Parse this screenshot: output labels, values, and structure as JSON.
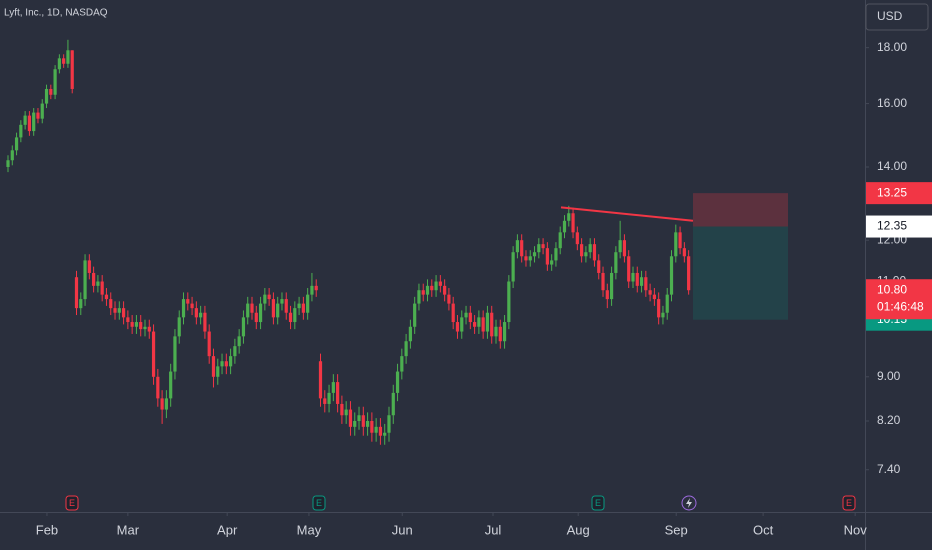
{
  "chart_data": {
    "type": "candlestick",
    "title": "Lyft, Inc., 1D, NASDAQ",
    "currency": "USD",
    "log_scale": true,
    "up_color": "#4caf50",
    "down_color": "#f23645",
    "open": [
      14.0,
      14.2,
      14.5,
      14.9,
      15.3,
      15.6,
      15.1,
      15.7,
      15.5,
      16.0,
      16.5,
      16.3,
      17.2,
      17.6,
      17.4,
      17.9,
      11.1,
      10.4,
      10.6,
      11.5,
      11.2,
      10.9,
      11.0,
      10.7,
      10.6,
      10.4,
      10.3,
      10.4,
      10.2,
      10.1,
      10.0,
      10.1,
      9.95,
      10.0,
      9.9,
      9.0,
      8.6,
      8.4,
      8.6,
      9.1,
      9.8,
      10.2,
      10.6,
      10.5,
      10.4,
      10.2,
      10.3,
      9.9,
      9.4,
      9.0,
      9.2,
      9.3,
      9.2,
      9.4,
      9.6,
      9.8,
      10.2,
      10.5,
      10.3,
      10.1,
      10.5,
      10.7,
      10.6,
      10.2,
      10.5,
      10.6,
      10.3,
      10.1,
      10.4,
      10.5,
      10.3,
      10.7,
      10.9,
      9.3,
      8.6,
      8.5,
      8.7,
      8.9,
      8.5,
      8.3,
      8.4,
      8.1,
      8.2,
      8.3,
      8.1,
      8.2,
      8.0,
      8.1,
      7.95,
      8.0,
      8.3,
      8.7,
      9.1,
      9.4,
      9.7,
      10.0,
      10.5,
      10.8,
      10.7,
      10.9,
      10.8,
      11.0,
      10.9,
      10.7,
      10.5,
      10.1,
      9.9,
      10.2,
      10.3,
      10.1,
      10.0,
      10.2,
      9.9,
      10.3,
      9.8,
      10.0,
      9.7,
      10.1,
      11.0,
      11.7,
      12.0,
      11.6,
      11.5,
      11.6,
      11.7,
      11.9,
      11.8,
      11.4,
      11.5,
      11.8,
      12.2,
      12.5,
      12.7,
      12.2,
      11.9,
      11.6,
      11.7,
      11.9,
      11.5,
      11.2,
      10.8,
      10.6,
      11.2,
      11.7,
      12.0,
      11.6,
      11.0,
      11.2,
      10.9,
      11.1,
      10.8,
      10.7,
      10.6,
      10.2,
      10.3,
      10.7,
      11.6,
      12.2,
      11.8,
      11.6
    ],
    "high": [
      14.35,
      14.65,
      15.05,
      15.45,
      15.75,
      15.75,
      15.85,
      15.85,
      16.15,
      16.65,
      16.65,
      17.35,
      17.75,
      17.75,
      18.3,
      17.9,
      11.25,
      10.75,
      11.65,
      11.65,
      11.35,
      11.15,
      11.15,
      10.85,
      10.75,
      10.55,
      10.55,
      10.55,
      10.35,
      10.25,
      10.25,
      10.25,
      10.15,
      10.15,
      10.05,
      9.15,
      8.75,
      8.75,
      9.25,
      9.95,
      10.35,
      10.75,
      10.75,
      10.65,
      10.55,
      10.45,
      10.45,
      10.05,
      9.55,
      9.35,
      9.45,
      9.45,
      9.55,
      9.75,
      9.95,
      10.35,
      10.65,
      10.65,
      10.45,
      10.65,
      10.85,
      10.85,
      10.75,
      10.65,
      10.75,
      10.75,
      10.45,
      10.55,
      10.65,
      10.65,
      10.85,
      11.2,
      11.05,
      9.45,
      8.75,
      8.85,
      9.05,
      9.05,
      8.65,
      8.55,
      8.55,
      8.35,
      8.45,
      8.45,
      8.35,
      8.35,
      8.25,
      8.25,
      8.15,
      8.45,
      8.85,
      9.25,
      9.55,
      9.85,
      10.15,
      10.65,
      10.95,
      10.95,
      11.05,
      11.05,
      11.15,
      11.15,
      11.05,
      10.85,
      10.65,
      10.25,
      10.35,
      10.45,
      10.45,
      10.25,
      10.35,
      10.35,
      10.45,
      10.45,
      10.15,
      10.15,
      10.25,
      11.15,
      11.85,
      12.15,
      12.15,
      11.75,
      11.75,
      11.85,
      12.05,
      12.05,
      11.95,
      11.65,
      11.95,
      12.35,
      12.65,
      12.9,
      12.85,
      12.35,
      12.05,
      11.85,
      12.05,
      12.05,
      11.65,
      11.35,
      10.95,
      11.35,
      11.85,
      12.5,
      12.15,
      11.75,
      11.35,
      11.35,
      11.25,
      11.25,
      10.95,
      10.85,
      10.75,
      10.45,
      10.85,
      11.75,
      12.4,
      12.35,
      11.95,
      11.75
    ],
    "low": [
      13.85,
      14.05,
      14.35,
      14.75,
      15.15,
      14.95,
      14.95,
      15.35,
      15.35,
      15.85,
      16.15,
      16.15,
      17.05,
      17.25,
      17.25,
      16.35,
      10.25,
      10.25,
      10.45,
      11.05,
      10.75,
      10.75,
      10.55,
      10.45,
      10.25,
      10.15,
      10.15,
      10.05,
      9.95,
      9.85,
      9.85,
      9.8,
      9.8,
      9.75,
      8.85,
      8.45,
      8.15,
      8.25,
      8.45,
      8.95,
      9.65,
      10.05,
      10.35,
      10.25,
      10.05,
      10.05,
      9.75,
      9.25,
      8.8,
      8.85,
      9.05,
      9.05,
      9.05,
      9.25,
      9.45,
      9.65,
      10.05,
      10.15,
      9.95,
      9.95,
      10.35,
      10.45,
      10.05,
      10.05,
      10.35,
      10.15,
      9.95,
      9.95,
      10.25,
      10.15,
      10.15,
      10.55,
      10.65,
      8.45,
      8.35,
      8.35,
      8.55,
      8.35,
      8.15,
      8.15,
      7.95,
      7.95,
      8.05,
      7.95,
      7.95,
      7.85,
      7.85,
      7.8,
      7.8,
      7.85,
      8.15,
      8.55,
      8.95,
      9.25,
      9.55,
      9.85,
      10.35,
      10.55,
      10.55,
      10.65,
      10.65,
      10.75,
      10.55,
      10.35,
      9.95,
      9.75,
      9.75,
      10.05,
      9.95,
      9.85,
      9.85,
      9.75,
      9.75,
      9.65,
      9.65,
      9.55,
      9.55,
      9.95,
      10.85,
      11.55,
      11.45,
      11.35,
      11.35,
      11.45,
      11.55,
      11.65,
      11.25,
      11.25,
      11.35,
      11.65,
      12.05,
      12.35,
      12.05,
      11.75,
      11.45,
      11.45,
      11.55,
      11.35,
      11.05,
      10.65,
      10.4,
      10.45,
      11.05,
      11.55,
      11.45,
      10.85,
      10.85,
      10.75,
      10.75,
      10.65,
      10.55,
      10.45,
      10.05,
      10.05,
      10.15,
      10.55,
      11.45,
      11.65,
      11.45,
      10.7
    ],
    "close": [
      14.2,
      14.5,
      14.9,
      15.3,
      15.6,
      15.1,
      15.7,
      15.5,
      16.0,
      16.5,
      16.3,
      17.2,
      17.6,
      17.4,
      17.9,
      16.5,
      10.4,
      10.6,
      11.5,
      11.2,
      10.9,
      11.0,
      10.7,
      10.6,
      10.4,
      10.3,
      10.4,
      10.2,
      10.1,
      10.0,
      10.1,
      9.95,
      10.0,
      9.9,
      9.0,
      8.6,
      8.4,
      8.6,
      9.1,
      9.8,
      10.2,
      10.6,
      10.5,
      10.4,
      10.2,
      10.3,
      9.9,
      9.4,
      9.0,
      9.2,
      9.3,
      9.2,
      9.4,
      9.6,
      9.8,
      10.2,
      10.5,
      10.3,
      10.1,
      10.5,
      10.7,
      10.6,
      10.2,
      10.5,
      10.6,
      10.3,
      10.1,
      10.4,
      10.5,
      10.3,
      10.7,
      10.9,
      10.8,
      8.6,
      8.5,
      8.7,
      8.9,
      8.5,
      8.3,
      8.4,
      8.1,
      8.2,
      8.3,
      8.1,
      8.2,
      8.0,
      8.1,
      7.95,
      8.0,
      8.3,
      8.7,
      9.1,
      9.4,
      9.7,
      10.0,
      10.5,
      10.8,
      10.7,
      10.9,
      10.8,
      11.0,
      10.9,
      10.7,
      10.5,
      10.1,
      9.9,
      10.2,
      10.3,
      10.1,
      10.0,
      10.2,
      9.9,
      10.3,
      9.8,
      10.0,
      9.7,
      10.1,
      11.0,
      11.7,
      12.0,
      11.6,
      11.5,
      11.6,
      11.7,
      11.9,
      11.8,
      11.4,
      11.5,
      11.8,
      12.2,
      12.5,
      12.7,
      12.2,
      11.9,
      11.6,
      11.7,
      11.9,
      11.5,
      11.2,
      10.8,
      10.6,
      11.2,
      11.7,
      12.0,
      11.6,
      11.0,
      11.2,
      10.9,
      11.1,
      10.8,
      10.7,
      10.6,
      10.2,
      10.3,
      10.7,
      11.6,
      12.2,
      11.8,
      11.6,
      10.8
    ],
    "xlim": [
      -1.87,
      200.2
    ],
    "xticks": [
      {
        "value": 9.1,
        "label": "Feb"
      },
      {
        "value": 28.0,
        "label": "Mar"
      },
      {
        "value": 51.2,
        "label": "Apr"
      },
      {
        "value": 70.3,
        "label": "May"
      },
      {
        "value": 92.1,
        "label": "Jun"
      },
      {
        "value": 113.3,
        "label": "Jul"
      },
      {
        "value": 133.2,
        "label": "Aug"
      },
      {
        "value": 156.1,
        "label": "Sep"
      },
      {
        "value": 176.4,
        "label": "Oct"
      },
      {
        "value": 197.9,
        "label": "Nov"
      }
    ],
    "ylim": [
      6.77,
      19.9
    ],
    "yticks": [
      {
        "value": 18,
        "label": "18.00"
      },
      {
        "value": 16,
        "label": "16.00"
      },
      {
        "value": 14,
        "label": "14.00"
      },
      {
        "value": 12,
        "label": "12.00"
      },
      {
        "value": 11,
        "label": "11.00"
      },
      {
        "value": 10,
        "label": "10.00"
      },
      {
        "value": 9,
        "label": "9.00"
      },
      {
        "value": 8.2,
        "label": "8.20"
      },
      {
        "value": 7.4,
        "label": "7.40"
      }
    ],
    "price_labels": [
      {
        "value": 13.25,
        "label": "13.25",
        "color": "#f23645"
      },
      {
        "value": 12.35,
        "label": "12.35",
        "color": "#ffffff"
      },
      {
        "value": 10.15,
        "label": "10.15",
        "color": "#089981"
      },
      {
        "value": 10.8,
        "label": "10.80",
        "color": "#f23645"
      }
    ],
    "countdown": "01:46:48",
    "trendline": {
      "start": 12.86,
      "end": 12.5,
      "color": "#f23645"
    },
    "events": [
      "E",
      "E",
      "E",
      "E"
    ]
  }
}
